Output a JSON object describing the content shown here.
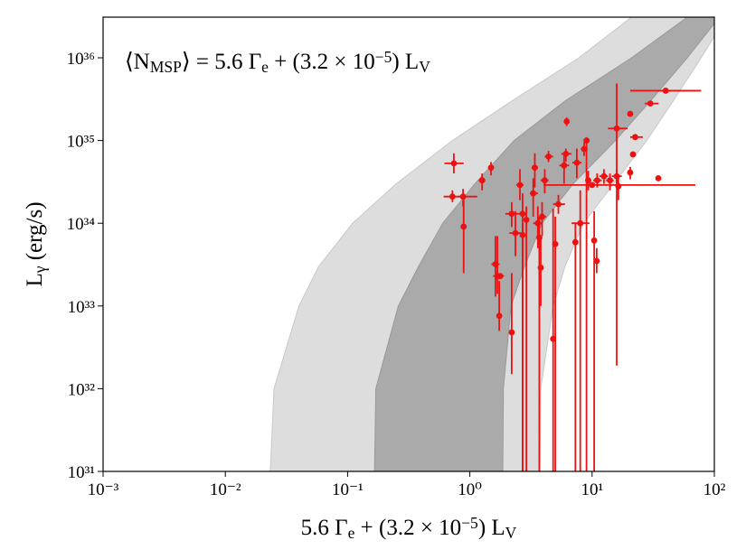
{
  "chart_data": {
    "type": "scatter",
    "annotation": [
      {
        "text": "⟨N"
      },
      {
        "text": "MSP",
        "script": "sub"
      },
      {
        "text": "⟩ = 5.6 Γ"
      },
      {
        "text": "e",
        "script": "sub"
      },
      {
        "text": " + (3.2 × 10"
      },
      {
        "text": "−5",
        "script": "super"
      },
      {
        "text": ") L"
      },
      {
        "text": "V",
        "script": "sub"
      }
    ],
    "xlabel": [
      {
        "text": "5.6 Γ"
      },
      {
        "text": "e",
        "script": "sub"
      },
      {
        "text": " + (3.2 × 10"
      },
      {
        "text": "−5",
        "script": "super"
      },
      {
        "text": ") L"
      },
      {
        "text": "V",
        "script": "sub"
      }
    ],
    "ylabel": [
      {
        "text": "L"
      },
      {
        "text": "γ",
        "script": "sub"
      },
      {
        "text": " (erg/s)"
      }
    ],
    "xscale": "log",
    "yscale": "log",
    "xlim": [
      0.001,
      100
    ],
    "ylim": [
      1e+31,
      3.1e+36
    ],
    "xticks": [
      {
        "value": 0.001,
        "label": "10⁻³"
      },
      {
        "value": 0.01,
        "label": "10⁻²"
      },
      {
        "value": 0.1,
        "label": "10⁻¹"
      },
      {
        "value": 1,
        "label": "10⁰"
      },
      {
        "value": 10,
        "label": "10¹"
      },
      {
        "value": 100,
        "label": "10²"
      }
    ],
    "yticks": [
      {
        "value": 1e+31,
        "label": "10³¹"
      },
      {
        "value": 1e+32,
        "label": "10³²"
      },
      {
        "value": 1e+33,
        "label": "10³³"
      },
      {
        "value": 1e+34,
        "label": "10³⁴"
      },
      {
        "value": 1e+35,
        "label": "10³⁵"
      },
      {
        "value": 1e+36,
        "label": "10³⁶"
      }
    ],
    "bands": [
      {
        "color": "#dddddd",
        "edge": "#c8c8c8",
        "y": [
          1e+31,
          1e+32,
          1e+33,
          3e+33,
          1e+34,
          3e+34,
          1e+35,
          3e+35,
          1e+36,
          3.1e+36
        ],
        "x_low": [
          0.0233,
          0.025,
          0.04,
          0.058,
          0.11,
          0.25,
          0.72,
          2.2,
          7.8,
          21
        ],
        "x_high": [
          3.74,
          3.8,
          4.8,
          6.0,
          8.5,
          15,
          28,
          46,
          78,
          125
        ]
      },
      {
        "color": "#aaaaaa",
        "edge": "#999999",
        "y": [
          1e+31,
          1e+32,
          1e+33,
          3e+33,
          1e+34,
          3e+34,
          1e+35,
          3e+35,
          1e+36,
          3.1e+36
        ],
        "x_low": [
          0.166,
          0.17,
          0.26,
          0.38,
          0.6,
          1.1,
          2.3,
          6,
          21,
          60
        ],
        "x_high": [
          1.86,
          1.88,
          2.17,
          2.8,
          3.9,
          7,
          15.5,
          30,
          60,
          110
        ]
      }
    ],
    "series": [
      {
        "color": "#ee1111",
        "x": [
          0.74,
          0.72,
          0.88,
          0.89,
          1.26,
          1.49,
          1.62,
          1.68,
          1.77,
          1.74,
          2.2,
          2.2,
          2.36,
          2.57,
          2.7,
          2.7,
          2.9,
          3.3,
          3.4,
          3.6,
          3.7,
          3.8,
          3.9,
          4.1,
          4.4,
          4.8,
          5.0,
          5.3,
          5.9,
          6.1,
          6.2,
          7.3,
          7.5,
          8.0,
          8.6,
          9.0,
          9.3,
          10,
          10.4,
          10.9,
          11,
          12.5,
          14,
          15.9,
          15.9,
          16.4,
          20.5,
          20.5,
          21.6,
          22.5,
          30,
          34.8,
          40
        ],
        "y": [
          5.3e+34,
          2.1e+34,
          2.1e+34,
          9.1e+33,
          3.3e+34,
          4.7e+34,
          3.2e+33,
          2.3e+33,
          2.3e+33,
          7.6e+32,
          4.8e+32,
          1.3e+34,
          7.6e+33,
          2.9e+34,
          1.3e+34,
          7.2e+33,
          1.1e+34,
          2.3e+34,
          4.7e+34,
          1e+34,
          6.7e+33,
          2.9e+33,
          1.2e+34,
          3.3e+34,
          6.4e+34,
          4e+32,
          5.6e+33,
          1.7e+34,
          5e+34,
          6.9e+34,
          1.7e+35,
          5.9e+33,
          5.4e+34,
          1e+34,
          7.9e+34,
          1e+35,
          3.3e+34,
          2.9e+34,
          6.2e+33,
          3.5e+33,
          3.3e+34,
          3.7e+34,
          3.3e+34,
          3.7e+34,
          1.4e+35,
          2.8e+34,
          2.1e+35,
          4.1e+34,
          6.8e+34,
          1.1e+35,
          2.8e+35,
          3.5e+34,
          4e+35
        ],
        "xlo": [
          0.62,
          0.61,
          0.8,
          null,
          1.18,
          1.42,
          1.5,
          1.55,
          1.65,
          null,
          null,
          1.95,
          2.1,
          2.4,
          2.5,
          null,
          null,
          3.1,
          3.2,
          3.3,
          null,
          null,
          3.7,
          3.8,
          4.1,
          null,
          null,
          4.8,
          5.4,
          5.6,
          6.0,
          null,
          6.9,
          6.8,
          8.1,
          8.6,
          8.8,
          4.0,
          null,
          null,
          10.2,
          11.5,
          13,
          14.5,
          13.5,
          15.5,
          null,
          19.5,
          null,
          20.5,
          27,
          null,
          20.5
        ],
        "xhi": [
          0.89,
          0.86,
          1.15,
          null,
          1.34,
          1.56,
          1.75,
          1.8,
          1.9,
          null,
          null,
          2.5,
          2.7,
          2.75,
          2.9,
          null,
          null,
          3.6,
          3.6,
          3.9,
          null,
          null,
          4.2,
          4.4,
          4.8,
          null,
          null,
          6.0,
          6.5,
          6.8,
          6.5,
          null,
          8.2,
          9.5,
          9.2,
          9.5,
          9.8,
          70,
          null,
          null,
          12,
          13.5,
          15,
          17.5,
          19.5,
          17.3,
          null,
          21.5,
          null,
          26,
          35,
          null,
          78
        ],
        "ylo": [
          4e+34,
          1.8e+34,
          1.6e+34,
          2.5e+33,
          2.5e+34,
          3.8e+34,
          1.3e+33,
          1.4e+33,
          null,
          5e+32,
          1.5e+32,
          9e+33,
          4e+33,
          1.9e+34,
          1e+30,
          1e+30,
          1e+30,
          1.2e+34,
          2.7e+34,
          5e+33,
          1e+30,
          1e+33,
          7e+33,
          2.3e+34,
          5.5e+34,
          1e+30,
          1e+30,
          1.3e+34,
          3e+34,
          5.5e+34,
          1.5e+35,
          1e+30,
          3.5e+34,
          1e+30,
          6.5e+34,
          1e+30,
          2.5e+34,
          2.7e+34,
          1e+30,
          2.5e+33,
          2.7e+34,
          3e+34,
          2.5e+34,
          3e+34,
          1.9e+32,
          1.9e+34,
          null,
          3.4e+34,
          null,
          null,
          null,
          null,
          null
        ],
        "yhi": [
          7e+34,
          2.5e+34,
          2.6e+34,
          2.1e+34,
          4e+34,
          5.5e+34,
          7e+33,
          7e+33,
          null,
          2e+33,
          2.5e+33,
          1.8e+34,
          1.4e+34,
          4.5e+34,
          2.3e+34,
          1e+34,
          1.6e+34,
          3.5e+34,
          7e+34,
          1.6e+34,
          1.2e+34,
          7e+33,
          1.8e+34,
          4.5e+34,
          7.5e+34,
          1.5e+34,
          1.2e+34,
          2.2e+34,
          7e+34,
          8e+34,
          1.9e+35,
          1e+34,
          8e+34,
          2.5e+34,
          9.5e+34,
          1.1e+35,
          4.3e+34,
          3.1e+34,
          1.4e+34,
          5e+33,
          4e+34,
          4.5e+34,
          4e+34,
          4.5e+34,
          4.9e+35,
          3.8e+34,
          null,
          4.8e+34,
          null,
          null,
          null,
          null,
          null
        ]
      }
    ]
  }
}
